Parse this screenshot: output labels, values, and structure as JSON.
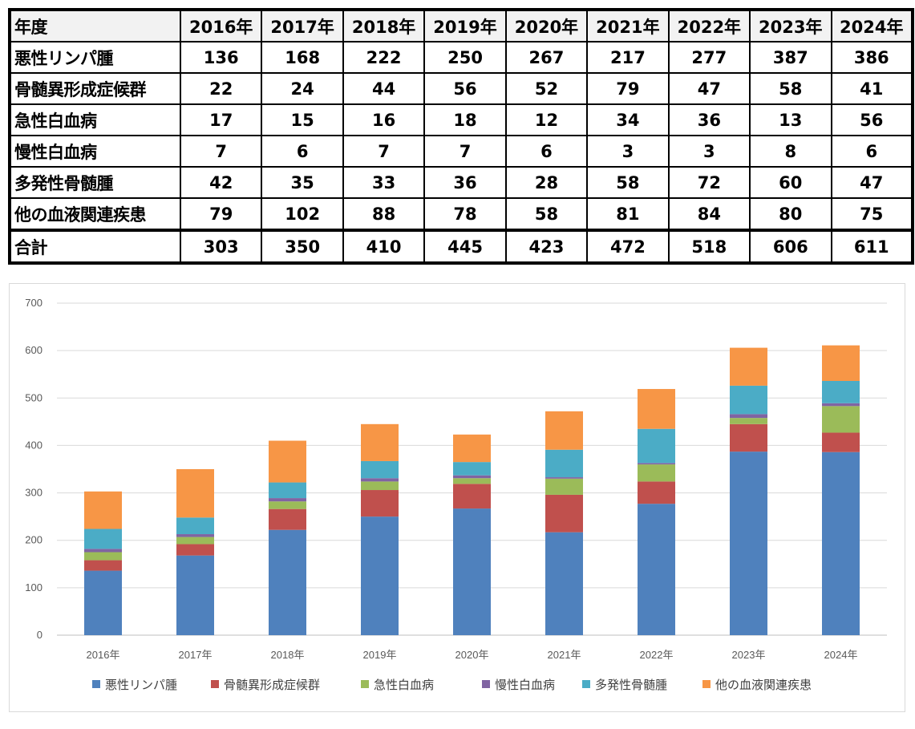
{
  "table": {
    "header_label": "年度",
    "years": [
      "2016年",
      "2017年",
      "2018年",
      "2019年",
      "2020年",
      "2021年",
      "2022年",
      "2023年",
      "2024年"
    ],
    "rows": [
      {
        "label": "悪性リンパ腫",
        "values": [
          "136",
          "168",
          "222",
          "250",
          "267",
          "217",
          "277",
          "387",
          "386"
        ]
      },
      {
        "label": "骨髄異形成症候群",
        "values": [
          "22",
          "24",
          "44",
          "56",
          "52",
          "79",
          "47",
          "58",
          "41"
        ]
      },
      {
        "label": "急性白血病",
        "values": [
          "17",
          "15",
          "16",
          "18",
          "12",
          "34",
          "36",
          "13",
          "56"
        ]
      },
      {
        "label": "慢性白血病",
        "values": [
          "7",
          "6",
          "7",
          "7",
          "6",
          "3",
          "3",
          "8",
          "6"
        ]
      },
      {
        "label": "多発性骨髄腫",
        "values": [
          "42",
          "35",
          "33",
          "36",
          "28",
          "58",
          "72",
          "60",
          "47"
        ]
      },
      {
        "label": "他の血液関連疾患",
        "values": [
          "79",
          "102",
          "88",
          "78",
          "58",
          "81",
          "84",
          "80",
          "75"
        ]
      }
    ],
    "total": {
      "label": "合計",
      "values": [
        "303",
        "350",
        "410",
        "445",
        "423",
        "472",
        "518",
        "606",
        "611"
      ]
    }
  },
  "chart_data": {
    "type": "bar",
    "stacked": true,
    "categories": [
      "2016年",
      "2017年",
      "2018年",
      "2019年",
      "2020年",
      "2021年",
      "2022年",
      "2023年",
      "2024年"
    ],
    "series": [
      {
        "name": "悪性リンパ腫",
        "color": "#4f81bd",
        "values": [
          136,
          168,
          222,
          250,
          267,
          217,
          277,
          387,
          386
        ]
      },
      {
        "name": "骨髄異形成症候群",
        "color": "#c0504d",
        "values": [
          22,
          24,
          44,
          56,
          52,
          79,
          47,
          58,
          41
        ]
      },
      {
        "name": "急性白血病",
        "color": "#9bbb59",
        "values": [
          17,
          15,
          16,
          18,
          12,
          34,
          36,
          13,
          56
        ]
      },
      {
        "name": "慢性白血病",
        "color": "#8064a2",
        "values": [
          7,
          6,
          7,
          7,
          6,
          3,
          3,
          8,
          6
        ]
      },
      {
        "name": "多発性骨髄腫",
        "color": "#4bacc6",
        "values": [
          42,
          35,
          33,
          36,
          28,
          58,
          72,
          60,
          47
        ]
      },
      {
        "name": "他の血液関連疾患",
        "color": "#f79646",
        "values": [
          79,
          102,
          88,
          78,
          58,
          81,
          84,
          80,
          75
        ]
      }
    ],
    "yticks": [
      "0",
      "100",
      "200",
      "300",
      "400",
      "500",
      "600",
      "700"
    ],
    "ylim": [
      0,
      700
    ],
    "grid": true,
    "legend_position": "bottom"
  }
}
